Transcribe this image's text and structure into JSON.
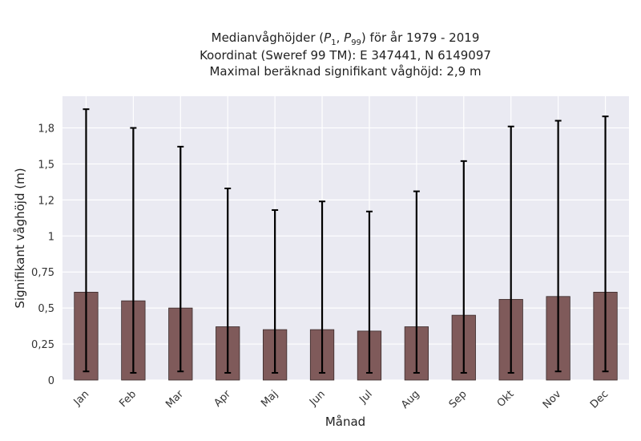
{
  "chart_data": {
    "type": "bar",
    "title_lines": [
      "Medianvåghöjder (P1, P99) för år 1979 - 2019",
      "Koordinat (Sweref 99 TM): E 347441, N 6149097",
      "Maximal beräknad signifikant våghöjd: 2,9 m"
    ],
    "xlabel": "Månad",
    "ylabel": "Signifikant våghöjd (m)",
    "categories": [
      "Jan",
      "Feb",
      "Mar",
      "Apr",
      "Maj",
      "Jun",
      "Jul",
      "Aug",
      "Sep",
      "Okt",
      "Nov",
      "Dec"
    ],
    "values": [
      0.61,
      0.55,
      0.5,
      0.37,
      0.35,
      0.35,
      0.34,
      0.37,
      0.45,
      0.56,
      0.58,
      0.61
    ],
    "lower": [
      0.06,
      0.05,
      0.06,
      0.05,
      0.05,
      0.05,
      0.05,
      0.05,
      0.05,
      0.05,
      0.06,
      0.06
    ],
    "upper": [
      1.88,
      1.75,
      1.62,
      1.33,
      1.18,
      1.24,
      1.17,
      1.31,
      1.52,
      1.76,
      1.8,
      1.83
    ],
    "yticks": [
      0,
      0.25,
      0.5,
      0.75,
      1,
      1.25,
      1.5,
      1.75
    ],
    "ytick_labels": [
      "0",
      "0,25",
      "0,5",
      "0,75",
      "1",
      "1,2",
      "1,5",
      "1,8"
    ],
    "ylim": [
      0,
      1.97
    ],
    "grid": true,
    "colors": {
      "bar": "#7f5a5a",
      "plot_background": "#eaeaf2",
      "error_bar": "#000000"
    }
  }
}
